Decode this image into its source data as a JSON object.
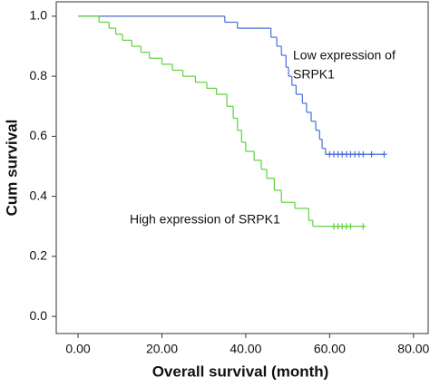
{
  "chart_data": {
    "type": "survival",
    "xlabel": "Overall survival (month)",
    "ylabel": "Cum survival",
    "xlim": [
      -5.2,
      83.5
    ],
    "ylim": [
      -0.057,
      1.048
    ],
    "xticks": [
      {
        "value": 0,
        "label": "0.00"
      },
      {
        "value": 20,
        "label": "20.00"
      },
      {
        "value": 40,
        "label": "40.00"
      },
      {
        "value": 60,
        "label": "60.00"
      },
      {
        "value": 80,
        "label": "80.00"
      }
    ],
    "yticks": [
      {
        "value": 0,
        "label": "0.0"
      },
      {
        "value": 0.2,
        "label": "0.2"
      },
      {
        "value": 0.4,
        "label": "0.4"
      },
      {
        "value": 0.6,
        "label": "0.6"
      },
      {
        "value": 0.8,
        "label": "0.8"
      },
      {
        "value": 1,
        "label": "1.0"
      }
    ],
    "series": [
      {
        "color": "#4a6fd6",
        "x": [
          0,
          35,
          38,
          46,
          47.4,
          48.5,
          49.6,
          50.2,
          51,
          52,
          53.5,
          54.5,
          55.6,
          56.7,
          57.6,
          58.2,
          59,
          73
        ],
        "values": [
          1.0,
          0.98,
          0.96,
          0.93,
          0.9,
          0.87,
          0.83,
          0.8,
          0.77,
          0.74,
          0.71,
          0.68,
          0.65,
          0.62,
          0.59,
          0.56,
          0.54,
          0.54
        ],
        "censored_x": [
          60,
          61,
          62,
          63,
          64,
          65,
          66,
          67,
          68,
          70,
          73
        ],
        "censored_values": [
          0.54,
          0.54,
          0.54,
          0.54,
          0.54,
          0.54,
          0.54,
          0.54,
          0.54,
          0.54,
          0.54
        ]
      },
      {
        "color": "#5fd13f",
        "x": [
          0,
          5,
          7.4,
          9,
          10.6,
          12.8,
          15,
          17,
          20,
          22.5,
          25,
          28,
          30.7,
          33,
          35.5,
          37,
          38,
          39,
          40,
          42,
          43.7,
          45,
          46.8,
          48.5,
          51.7,
          55,
          56,
          68
        ],
        "values": [
          1.0,
          0.98,
          0.96,
          0.94,
          0.92,
          0.9,
          0.88,
          0.86,
          0.84,
          0.82,
          0.8,
          0.78,
          0.76,
          0.74,
          0.7,
          0.66,
          0.62,
          0.58,
          0.55,
          0.52,
          0.49,
          0.46,
          0.42,
          0.38,
          0.36,
          0.32,
          0.3,
          0.3
        ],
        "censored_x": [
          61,
          62,
          63,
          64,
          65,
          68
        ],
        "censored_values": [
          0.3,
          0.3,
          0.3,
          0.3,
          0.3,
          0.3
        ]
      }
    ],
    "annotations": [
      {
        "lines": [
          "Low expression of",
          "SRPK1"
        ]
      },
      {
        "lines": [
          "High expression of SRPK1"
        ]
      }
    ]
  }
}
